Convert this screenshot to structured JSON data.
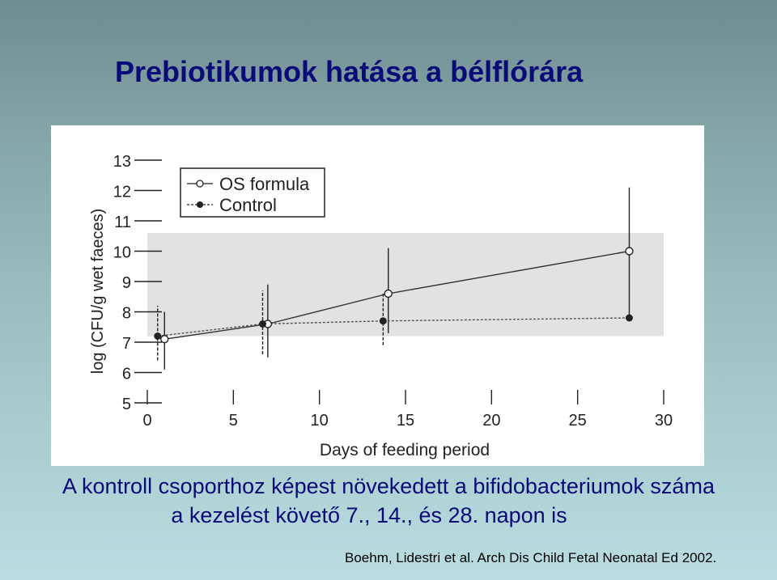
{
  "slide": {
    "title": "Prebiotikumok hatása a bélflórára",
    "caption_line1": "A kontroll csoporthoz képest növekedett a bifidobacteriumok száma",
    "caption_line2": "a kezelést követő 7., 14., és 28. napon is",
    "reference": "Boehm, Lidestri et al. Arch Dis Child Fetal Neonatal Ed 2002."
  },
  "chart_data": {
    "type": "line",
    "xlabel": "Days of feeding period",
    "ylabel": "log (CFU/g wet faeces)",
    "xlim": [
      0,
      30
    ],
    "ylim": [
      5,
      13
    ],
    "x_ticks": [
      0,
      5,
      10,
      15,
      20,
      25,
      30
    ],
    "y_ticks": [
      5,
      6,
      7,
      8,
      9,
      10,
      11,
      12,
      13
    ],
    "reference_band": [
      7.2,
      10.6
    ],
    "series": [
      {
        "name": "OS formula",
        "marker": "open-circle",
        "line_style": "solid",
        "points": [
          {
            "x": 1,
            "y": 7.1,
            "err_low": 6.1,
            "err_high": 8.0
          },
          {
            "x": 7,
            "y": 7.6,
            "err_low": 6.5,
            "err_high": 8.9
          },
          {
            "x": 14,
            "y": 8.6,
            "err_low": 7.3,
            "err_high": 10.1
          },
          {
            "x": 28,
            "y": 10.0,
            "err_low": 7.9,
            "err_high": 12.1
          }
        ]
      },
      {
        "name": "Control",
        "marker": "filled-circle",
        "line_style": "dashed",
        "points": [
          {
            "x": 0.6,
            "y": 7.2,
            "err_low": 6.4,
            "err_high": 8.2
          },
          {
            "x": 6.7,
            "y": 7.6,
            "err_low": 6.6,
            "err_high": 8.7
          },
          {
            "x": 13.7,
            "y": 7.7,
            "err_low": 6.9,
            "err_high": 8.6
          },
          {
            "x": 28,
            "y": 7.8,
            "err_low": null,
            "err_high": null
          }
        ]
      }
    ]
  }
}
